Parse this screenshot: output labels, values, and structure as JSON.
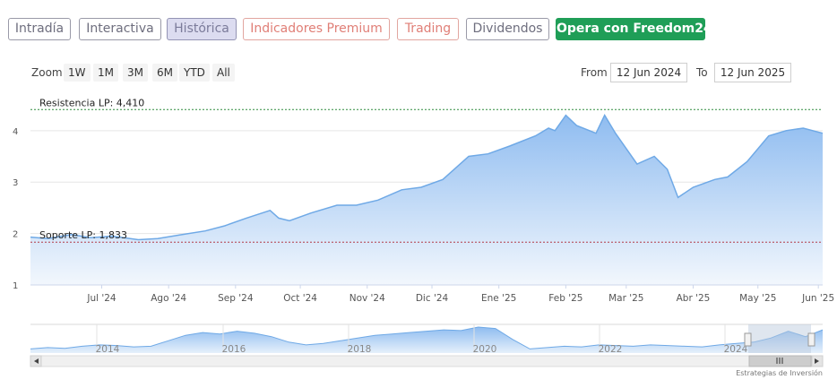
{
  "tabs": [
    {
      "label": "Intradía",
      "style": "normal"
    },
    {
      "label": "Interactiva",
      "style": "normal"
    },
    {
      "label": "Histórica",
      "style": "active"
    },
    {
      "label": "Indicadores Premium",
      "style": "premium"
    },
    {
      "label": "Trading",
      "style": "trading"
    },
    {
      "label": "Dividendos",
      "style": "normal"
    },
    {
      "label": "Opera con Freedom24",
      "style": "cta"
    }
  ],
  "zoom": {
    "label": "Zoom",
    "buttons": [
      "1W",
      "1M",
      "3M",
      "6M",
      "YTD",
      "All"
    ]
  },
  "range": {
    "from_label": "From",
    "from_value": "12 Jun 2024",
    "to_label": "To",
    "to_value": "12 Jun 2025"
  },
  "chart_data": {
    "type": "area",
    "y_ticks": [
      "1",
      "2",
      "3",
      "4"
    ],
    "ylim": [
      1,
      4.45
    ],
    "x_ticks": [
      "Jul '24",
      "Ago '24",
      "Sep '24",
      "Oct '24",
      "Nov '24",
      "Dic '24",
      "Ene '25",
      "Feb '25",
      "Mar '25",
      "Abr '25",
      "May '25",
      "Jun '25"
    ],
    "series": [
      {
        "x": [
          "2024-06-12",
          "2024-06-20",
          "2024-07-01",
          "2024-07-10",
          "2024-07-20",
          "2024-08-01",
          "2024-08-10",
          "2024-08-20",
          "2024-09-01",
          "2024-09-10",
          "2024-09-20",
          "2024-10-01",
          "2024-10-05",
          "2024-10-10",
          "2024-10-20",
          "2024-11-01",
          "2024-11-10",
          "2024-11-20",
          "2024-12-01",
          "2024-12-10",
          "2024-12-20",
          "2025-01-01",
          "2025-01-10",
          "2025-01-20",
          "2025-02-01",
          "2025-02-07",
          "2025-02-10",
          "2025-02-15",
          "2025-02-20",
          "2025-03-01",
          "2025-03-05",
          "2025-03-10",
          "2025-03-20",
          "2025-03-28",
          "2025-04-03",
          "2025-04-08",
          "2025-04-15",
          "2025-04-25",
          "2025-05-01",
          "2025-05-10",
          "2025-05-20",
          "2025-05-28",
          "2025-06-05",
          "2025-06-12"
        ],
        "values": [
          1.93,
          1.9,
          1.98,
          1.92,
          1.95,
          1.88,
          1.9,
          1.97,
          2.05,
          2.15,
          2.3,
          2.45,
          2.3,
          2.25,
          2.4,
          2.55,
          2.55,
          2.65,
          2.85,
          2.9,
          3.05,
          3.5,
          3.55,
          3.7,
          3.9,
          4.05,
          4.0,
          4.3,
          4.1,
          3.95,
          4.3,
          3.95,
          3.35,
          3.5,
          3.25,
          2.7,
          2.9,
          3.05,
          3.1,
          3.4,
          3.9,
          4.0,
          4.05,
          3.95
        ]
      }
    ],
    "resistance": {
      "label": "Resistencia LP: 4,410",
      "value": 4.41,
      "color": "#2e8b3e"
    },
    "support": {
      "label": "Soporte LP: 1,833",
      "value": 1.833,
      "color": "#b23a48"
    },
    "line_color": "#6fa9e6",
    "fill_top": "#8fbcf0",
    "fill_bottom": "#f2f7fd",
    "grid": true
  },
  "navigator": {
    "year_labels": [
      "2014",
      "2016",
      "2018",
      "2020",
      "2022",
      "2024"
    ],
    "values": [
      1.6,
      1.7,
      1.65,
      1.8,
      1.9,
      1.85,
      1.75,
      1.8,
      2.2,
      2.6,
      2.8,
      2.7,
      2.9,
      2.75,
      2.5,
      2.1,
      1.9,
      2.0,
      2.2,
      2.4,
      2.6,
      2.7,
      2.8,
      2.9,
      3.0,
      2.95,
      3.2,
      3.1,
      2.3,
      1.6,
      1.7,
      1.8,
      1.75,
      1.9,
      1.85,
      1.8,
      1.9,
      1.85,
      1.8,
      1.75,
      1.9,
      2.0,
      2.1,
      2.4,
      2.9,
      2.5,
      3.0
    ],
    "scroll_thumb_icon": "grip-lines-icon",
    "left_arrow_icon": "arrow-left-icon",
    "right_arrow_icon": "arrow-right-icon"
  },
  "watermark": "Estrategias de Inversión"
}
